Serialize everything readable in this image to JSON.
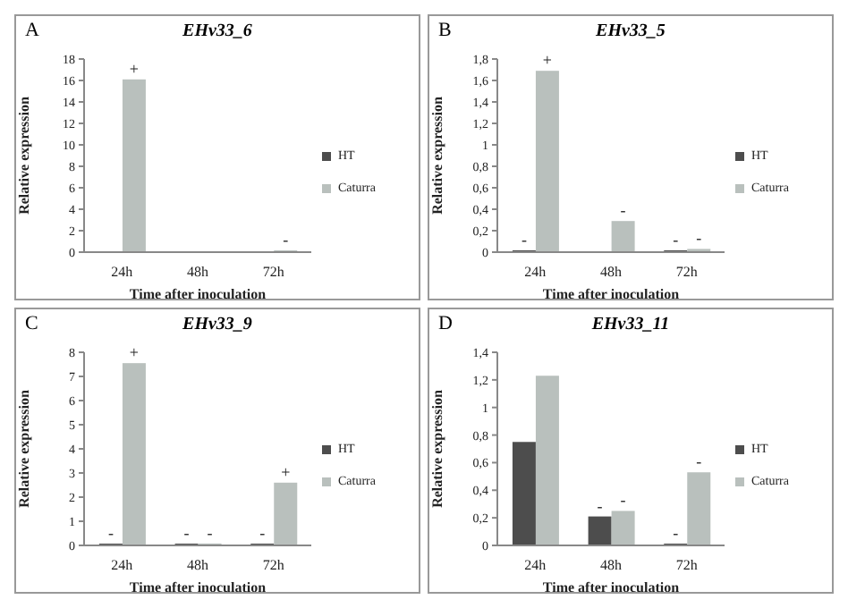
{
  "chart_data": [
    {
      "type": "bar",
      "title": "EHv33_6",
      "xlabel": "Time after inoculation",
      "ylabel": "Relative expression",
      "annotations": [
        "A"
      ],
      "categories": [
        "24h",
        "48h",
        "72h"
      ],
      "legend": "right",
      "ylim": [
        0,
        18
      ],
      "yticks": [
        0,
        2,
        4,
        6,
        8,
        10,
        12,
        14,
        16,
        18
      ],
      "series": [
        {
          "name": "HT",
          "color": "#4d4d4d",
          "values": [
            0,
            0,
            0
          ],
          "value_labels": [
            null,
            null,
            null
          ]
        },
        {
          "name": "Caturra",
          "color": "#b9c0bd",
          "values": [
            16.1,
            0,
            0.1
          ],
          "value_labels": [
            "+",
            null,
            "-"
          ]
        }
      ]
    },
    {
      "type": "bar",
      "title": "EHv33_5",
      "xlabel": "Time after inoculation",
      "ylabel": "Relative expression",
      "annotations": [
        "B"
      ],
      "categories": [
        "24h",
        "48h",
        "72h"
      ],
      "legend": "right",
      "ylim": [
        0,
        1.8
      ],
      "yticks": [
        0,
        {
          "value": 0.2,
          "label": "0,2"
        },
        {
          "value": 0.4,
          "label": "0,4"
        },
        {
          "value": 0.6,
          "label": "0,6"
        },
        {
          "value": 0.8,
          "label": "0,8"
        },
        1,
        {
          "value": 1.2,
          "label": "1,2"
        },
        {
          "value": 1.4,
          "label": "1,4"
        },
        {
          "value": 1.6,
          "label": "1,6"
        },
        {
          "value": 1.8,
          "label": "1,8"
        }
      ],
      "series": [
        {
          "name": "HT",
          "color": "#4d4d4d",
          "values": [
            0.01,
            0,
            0.01
          ],
          "value_labels": [
            "-",
            null,
            "-"
          ]
        },
        {
          "name": "Caturra",
          "color": "#b9c0bd",
          "values": [
            1.69,
            0.29,
            0.03
          ],
          "value_labels": [
            "+",
            "-",
            "-"
          ]
        }
      ]
    },
    {
      "type": "bar",
      "title": "EHv33_9",
      "xlabel": "Time after inoculation",
      "ylabel": "Relative expression",
      "annotations": [
        "C"
      ],
      "categories": [
        "24h",
        "48h",
        "72h"
      ],
      "legend": "right",
      "ylim": [
        0,
        8
      ],
      "yticks": [
        0,
        1,
        2,
        3,
        4,
        5,
        6,
        7,
        8
      ],
      "series": [
        {
          "name": "HT",
          "color": "#4d4d4d",
          "values": [
            0.03,
            0.05,
            0.02
          ],
          "value_labels": [
            "-",
            "-",
            "-"
          ]
        },
        {
          "name": "Caturra",
          "color": "#b9c0bd",
          "values": [
            7.55,
            0.08,
            2.6
          ],
          "value_labels": [
            "+",
            "-",
            "+"
          ]
        }
      ]
    },
    {
      "type": "bar",
      "title": "EHv33_11",
      "xlabel": "Time after inoculation",
      "ylabel": "Relative expression",
      "annotations": [
        "D"
      ],
      "categories": [
        "24h",
        "48h",
        "72h"
      ],
      "legend": "right",
      "ylim": [
        0,
        1.4
      ],
      "yticks": [
        0,
        {
          "value": 0.2,
          "label": "0,2"
        },
        {
          "value": 0.4,
          "label": "0,4"
        },
        {
          "value": 0.6,
          "label": "0,6"
        },
        {
          "value": 0.8,
          "label": "0,8"
        },
        1,
        {
          "value": 1.2,
          "label": "1,2"
        },
        {
          "value": 1.4,
          "label": "1,4"
        }
      ],
      "series": [
        {
          "name": "HT",
          "color": "#4d4d4d",
          "values": [
            0.75,
            0.21,
            0.01
          ],
          "value_labels": [
            null,
            "-",
            "-"
          ]
        },
        {
          "name": "Caturra",
          "color": "#b9c0bd",
          "values": [
            1.23,
            0.25,
            0.53
          ],
          "value_labels": [
            null,
            "-",
            "-"
          ]
        }
      ]
    }
  ]
}
